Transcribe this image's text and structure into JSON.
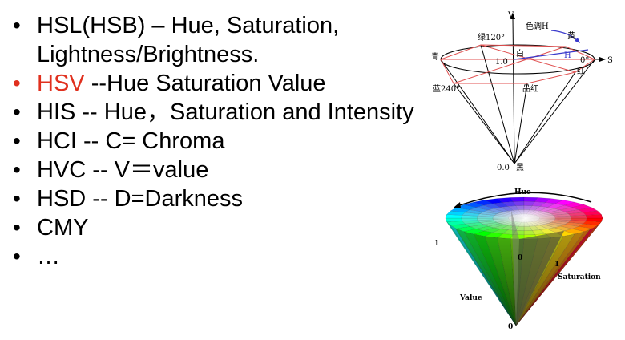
{
  "bullets": [
    {
      "text": "HSL(HSB) – Hue, Saturation, Lightness/Brightness.",
      "color": "#000000"
    },
    {
      "head": "HSV",
      "tail": " --Hue Saturation Value",
      "head_color": "#e0301e"
    },
    {
      "text": "HIS -- Hue，Saturation and Intensity",
      "color": "#000000"
    },
    {
      "text": "HCI -- C= Chroma",
      "color": "#000000"
    },
    {
      "text": "HVC -- V＝value",
      "color": "#000000"
    },
    {
      "text": "HSD -- D=Darkness",
      "color": "#000000"
    },
    {
      "text": "CMY",
      "color": "#000000"
    },
    {
      "text": "…",
      "color": "#000000"
    }
  ],
  "bullet_glyph": "•",
  "hexcone": {
    "v_axis": "V",
    "s_axis": "S",
    "hue_label": "色调H",
    "h_label": "H",
    "green": "绿120°",
    "yellow": "黄",
    "cyan": "青",
    "white_val": "1.0",
    "white": "白",
    "zero_deg": "0°",
    "red": "红",
    "blue": "蓝240°",
    "magenta": "品红",
    "black_val": "0.0",
    "black": "黑"
  },
  "cone": {
    "hue": "Hue",
    "one_left": "1",
    "zero_center": "0",
    "one_saturation": "1",
    "saturation": "Saturation",
    "value": "Value",
    "zero_bottom": "0"
  }
}
